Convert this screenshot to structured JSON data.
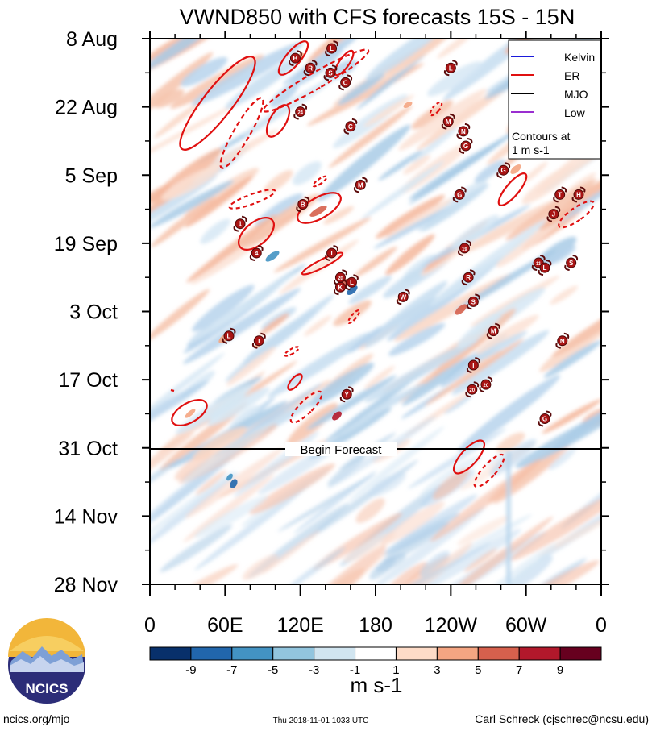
{
  "chart_data": {
    "type": "heatmap",
    "title": "VWND850 with CFS forecasts  15S - 15N",
    "x_ticks": [
      "0",
      "60E",
      "120E",
      "180",
      "120W",
      "60W",
      "0"
    ],
    "y_ticks": [
      "8 Aug",
      "22 Aug",
      "5 Sep",
      "19 Sep",
      "3 Oct",
      "17 Oct",
      "31 Oct",
      "14 Nov",
      "28 Nov"
    ],
    "forecast_label": "Begin Forecast",
    "legend": {
      "entries": [
        {
          "name": "Kelvin",
          "color": "#1a1adb"
        },
        {
          "name": "ER",
          "color": "#e01010"
        },
        {
          "name": "MJO",
          "color": "#000000"
        },
        {
          "name": "Low",
          "color": "#9a2ed0"
        }
      ],
      "note_line1": "Contours at",
      "note_line2": "1 m s-1",
      "placement": "top-right"
    },
    "colorbar": {
      "labels": [
        "-9",
        "-7",
        "-5",
        "-3",
        "-1",
        "1",
        "3",
        "5",
        "7",
        "9"
      ],
      "colors": [
        "#08306b",
        "#2166ac",
        "#4393c3",
        "#92c5de",
        "#d1e5f0",
        "#ffffff",
        "#fddbc7",
        "#f4a582",
        "#d6604d",
        "#b2182b",
        "#67001f"
      ],
      "units": "m s-1"
    },
    "storms": [
      {
        "label": "B",
        "lon": 116,
        "day": 4
      },
      {
        "label": "L",
        "lon": 145,
        "day": 2
      },
      {
        "label": "R",
        "lon": 128,
        "day": 6
      },
      {
        "label": "S",
        "lon": 144,
        "day": 7
      },
      {
        "label": "C",
        "lon": 156,
        "day": 9
      },
      {
        "label": "24",
        "lon": 120,
        "day": 15
      },
      {
        "label": "L",
        "lon": 240,
        "day": 6
      },
      {
        "label": "M",
        "lon": 238,
        "day": 17
      },
      {
        "label": "N",
        "lon": 250,
        "day": 19
      },
      {
        "label": "G",
        "lon": 252,
        "day": 22
      },
      {
        "label": "G",
        "lon": 282,
        "day": 27
      },
      {
        "label": "C",
        "lon": 160,
        "day": 18
      },
      {
        "label": "M",
        "lon": 168,
        "day": 30
      },
      {
        "label": "B",
        "lon": 122,
        "day": 34
      },
      {
        "label": "G",
        "lon": 247,
        "day": 32
      },
      {
        "label": "T",
        "lon": 327,
        "day": 32
      },
      {
        "label": "H",
        "lon": 342,
        "day": 32
      },
      {
        "label": "J",
        "lon": 322,
        "day": 36
      },
      {
        "label": "1",
        "lon": 72,
        "day": 38
      },
      {
        "label": "4",
        "lon": 85,
        "day": 44
      },
      {
        "label": "T",
        "lon": 145,
        "day": 44
      },
      {
        "label": "19",
        "lon": 251,
        "day": 43
      },
      {
        "label": "11",
        "lon": 310,
        "day": 46
      },
      {
        "label": "L",
        "lon": 315,
        "day": 47
      },
      {
        "label": "S",
        "lon": 336,
        "day": 46
      },
      {
        "label": "20",
        "lon": 152,
        "day": 49
      },
      {
        "label": "K",
        "lon": 152,
        "day": 51
      },
      {
        "label": "L",
        "lon": 161,
        "day": 50
      },
      {
        "label": "W",
        "lon": 202,
        "day": 53
      },
      {
        "label": "R",
        "lon": 254,
        "day": 49
      },
      {
        "label": "S",
        "lon": 258,
        "day": 54
      },
      {
        "label": "L",
        "lon": 63,
        "day": 61
      },
      {
        "label": "T",
        "lon": 87,
        "day": 62
      },
      {
        "label": "M",
        "lon": 274,
        "day": 60
      },
      {
        "label": "N",
        "lon": 329,
        "day": 62
      },
      {
        "label": "T",
        "lon": 258,
        "day": 67
      },
      {
        "label": "20",
        "lon": 257,
        "day": 72
      },
      {
        "label": "20",
        "lon": 268,
        "day": 71
      },
      {
        "label": "Y",
        "lon": 157,
        "day": 73
      },
      {
        "label": "G",
        "lon": 315,
        "day": 78
      }
    ],
    "footer_left": "ncics.org/mjo",
    "footer_center": "Thu 2018-11-01 1033 UTC",
    "footer_right": "Carl Schreck (cjschrec@ncsu.edu)",
    "logo_text": "NCICS"
  }
}
